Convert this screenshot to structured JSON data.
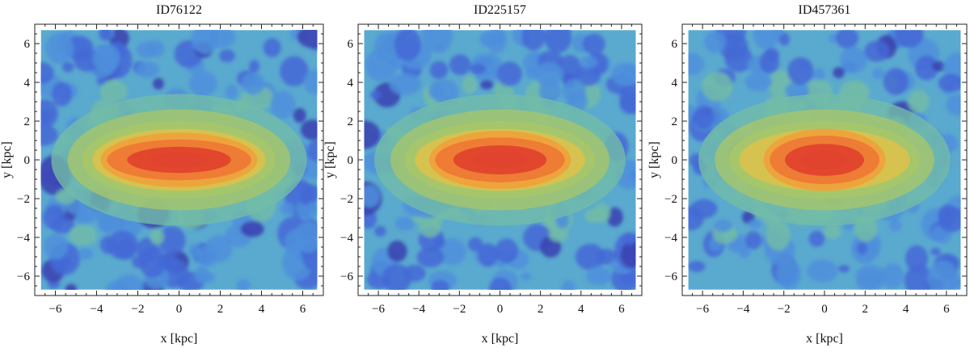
{
  "chart_data": [
    {
      "type": "heatmap",
      "title": "ID76122",
      "xlabel": "x [kpc]",
      "ylabel": "y [kpc]",
      "xlim": [
        -7,
        7
      ],
      "ylim": [
        -7,
        7
      ],
      "xticks": [
        -6,
        -4,
        -2,
        0,
        2,
        4,
        6
      ],
      "yticks": [
        -6,
        -4,
        -2,
        0,
        2,
        4,
        6
      ],
      "grid": false,
      "description_values": {
        "extent_kpc": [
          -6.7,
          6.7
        ],
        "core_center_kpc": [
          0,
          0
        ],
        "core_semi_axes_kpc": [
          3.5,
          0.9
        ]
      },
      "colormap": [
        "#3b3fb0",
        "#4468d6",
        "#4f8fdc",
        "#5aa9cf",
        "#72bba8",
        "#a6c66b",
        "#d8c24e",
        "#eea23b",
        "#ee7a35",
        "#e0452e"
      ]
    },
    {
      "type": "heatmap",
      "title": "ID225157",
      "xlabel": "x [kpc]",
      "ylabel": "y [kpc]",
      "xlim": [
        -7,
        7
      ],
      "ylim": [
        -7,
        7
      ],
      "xticks": [
        -6,
        -4,
        -2,
        0,
        2,
        4,
        6
      ],
      "yticks": [
        -6,
        -4,
        -2,
        0,
        2,
        4,
        6
      ],
      "grid": false,
      "description_values": {
        "extent_kpc": [
          -6.7,
          6.7
        ],
        "core_center_kpc": [
          0,
          0
        ],
        "core_semi_axes_kpc": [
          3.2,
          1.0
        ]
      },
      "colormap": [
        "#3b3fb0",
        "#4468d6",
        "#4f8fdc",
        "#5aa9cf",
        "#72bba8",
        "#a6c66b",
        "#d8c24e",
        "#eea23b",
        "#ee7a35",
        "#e0452e"
      ]
    },
    {
      "type": "heatmap",
      "title": "ID457361",
      "xlabel": "x [kpc]",
      "ylabel": "y [kpc]",
      "xlim": [
        -7,
        7
      ],
      "ylim": [
        -7,
        7
      ],
      "xticks": [
        -6,
        -4,
        -2,
        0,
        2,
        4,
        6
      ],
      "yticks": [
        -6,
        -4,
        -2,
        0,
        2,
        4,
        6
      ],
      "grid": false,
      "description_values": {
        "extent_kpc": [
          -6.7,
          6.7
        ],
        "core_center_kpc": [
          0,
          0
        ],
        "core_semi_axes_kpc": [
          2.7,
          1.1
        ]
      },
      "colormap": [
        "#3b3fb0",
        "#4468d6",
        "#4f8fdc",
        "#5aa9cf",
        "#72bba8",
        "#a6c66b",
        "#d8c24e",
        "#eea23b",
        "#ee7a35",
        "#e0452e"
      ]
    }
  ]
}
